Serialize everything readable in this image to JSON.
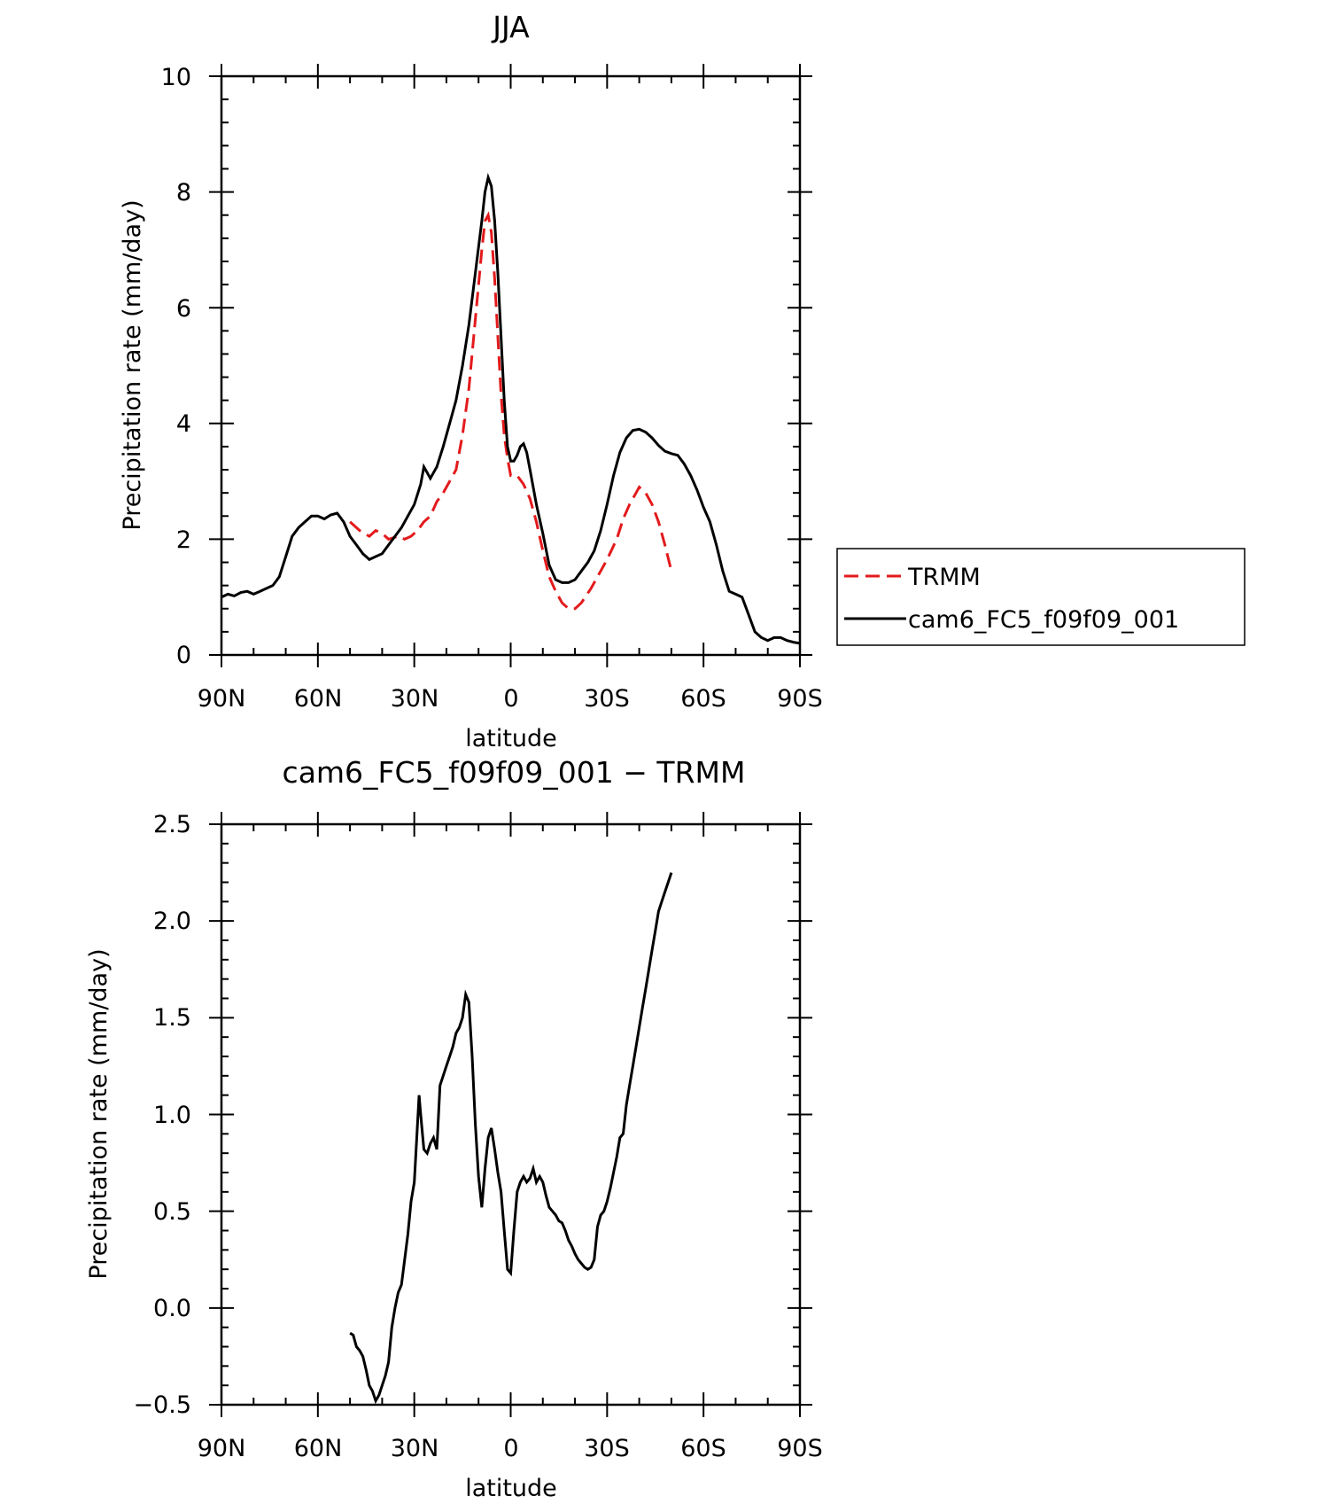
{
  "chart_data": [
    {
      "type": "line",
      "title": "JJA",
      "xlabel": "latitude",
      "ylabel": "Precipitation rate (mm/day)",
      "xlim": [
        -90,
        90
      ],
      "ylim": [
        0,
        10
      ],
      "x_ticks": [
        {
          "value": -90,
          "label": "90N"
        },
        {
          "value": -60,
          "label": "60N"
        },
        {
          "value": -30,
          "label": "30N"
        },
        {
          "value": 0,
          "label": "0"
        },
        {
          "value": 30,
          "label": "30S"
        },
        {
          "value": 60,
          "label": "60S"
        },
        {
          "value": 90,
          "label": "90S"
        }
      ],
      "y_ticks": [
        {
          "value": 0,
          "label": "0"
        },
        {
          "value": 2,
          "label": "2"
        },
        {
          "value": 4,
          "label": "4"
        },
        {
          "value": 6,
          "label": "6"
        },
        {
          "value": 8,
          "label": "8"
        },
        {
          "value": 10,
          "label": "10"
        }
      ],
      "legend": {
        "position": "right",
        "entries": [
          "TRMM",
          "cam6_FC5_f09f09_001"
        ]
      },
      "series": [
        {
          "name": "TRMM",
          "color": "#e31a1c",
          "style": "dashed",
          "x": [
            -50,
            -47,
            -44,
            -42,
            -40,
            -38,
            -35,
            -33,
            -31,
            -29,
            -27,
            -25,
            -23,
            -21,
            -19,
            -17,
            -15,
            -13,
            -11,
            -9,
            -8,
            -7,
            -6,
            -5,
            -4,
            -3,
            -2,
            -1,
            0,
            2,
            4,
            6,
            8,
            10,
            12,
            14,
            16,
            18,
            20,
            22,
            25,
            28,
            30,
            33,
            35,
            37,
            39,
            40,
            42,
            44,
            46,
            48,
            50
          ],
          "values": [
            2.3,
            2.15,
            2.05,
            2.15,
            2.1,
            2.0,
            2.05,
            2.0,
            2.05,
            2.15,
            2.3,
            2.4,
            2.65,
            2.8,
            3.0,
            3.2,
            3.8,
            4.6,
            5.8,
            7.0,
            7.5,
            7.6,
            7.3,
            6.5,
            5.5,
            4.5,
            3.8,
            3.4,
            3.1,
            3.1,
            2.95,
            2.7,
            2.3,
            1.8,
            1.35,
            1.1,
            0.9,
            0.8,
            0.8,
            0.9,
            1.15,
            1.45,
            1.65,
            2.0,
            2.35,
            2.6,
            2.8,
            2.9,
            2.8,
            2.6,
            2.3,
            1.9,
            1.45
          ]
        },
        {
          "name": "cam6_FC5_f09f09_001",
          "color": "#000000",
          "style": "solid",
          "x": [
            -90,
            -88,
            -86,
            -84,
            -82,
            -80,
            -78,
            -76,
            -74,
            -72,
            -70,
            -68,
            -66,
            -64,
            -62,
            -60,
            -58,
            -56,
            -54,
            -52,
            -50,
            -48,
            -46,
            -44,
            -42,
            -40,
            -38,
            -36,
            -34,
            -32,
            -30,
            -28,
            -27,
            -26,
            -25,
            -24,
            -23,
            -21,
            -19,
            -17,
            -15,
            -13,
            -11,
            -9,
            -8,
            -7,
            -6,
            -5,
            -4,
            -3,
            -2,
            -1,
            0,
            1,
            2,
            3,
            4,
            5,
            6,
            8,
            10,
            12,
            14,
            16,
            18,
            20,
            22,
            24,
            26,
            28,
            30,
            32,
            34,
            36,
            38,
            40,
            42,
            44,
            46,
            48,
            50,
            52,
            54,
            56,
            58,
            60,
            62,
            64,
            66,
            68,
            70,
            72,
            74,
            76,
            78,
            80,
            82,
            84,
            86,
            88,
            90
          ],
          "values": [
            1.0,
            1.05,
            1.02,
            1.08,
            1.1,
            1.05,
            1.1,
            1.15,
            1.2,
            1.35,
            1.7,
            2.05,
            2.2,
            2.3,
            2.4,
            2.4,
            2.35,
            2.42,
            2.45,
            2.3,
            2.05,
            1.9,
            1.75,
            1.65,
            1.7,
            1.75,
            1.9,
            2.05,
            2.2,
            2.4,
            2.6,
            2.95,
            3.25,
            3.15,
            3.05,
            3.15,
            3.25,
            3.6,
            4.0,
            4.4,
            5.0,
            5.7,
            6.6,
            7.5,
            8.0,
            8.25,
            8.1,
            7.5,
            6.6,
            5.5,
            4.4,
            3.6,
            3.35,
            3.35,
            3.45,
            3.6,
            3.65,
            3.5,
            3.2,
            2.6,
            2.1,
            1.55,
            1.3,
            1.25,
            1.25,
            1.3,
            1.45,
            1.6,
            1.8,
            2.15,
            2.6,
            3.1,
            3.5,
            3.75,
            3.88,
            3.9,
            3.85,
            3.75,
            3.62,
            3.52,
            3.48,
            3.45,
            3.3,
            3.1,
            2.85,
            2.55,
            2.3,
            1.9,
            1.45,
            1.1,
            1.05,
            1.0,
            0.7,
            0.4,
            0.3,
            0.25,
            0.3,
            0.3,
            0.25,
            0.22,
            0.2
          ]
        }
      ]
    },
    {
      "type": "line",
      "title": "cam6_FC5_f09f09_001 − TRMM",
      "xlabel": "latitude",
      "ylabel": "Precipitation rate (mm/day)",
      "xlim": [
        -90,
        90
      ],
      "ylim": [
        -0.5,
        2.5
      ],
      "x_ticks": [
        {
          "value": -90,
          "label": "90N"
        },
        {
          "value": -60,
          "label": "60N"
        },
        {
          "value": -30,
          "label": "30N"
        },
        {
          "value": 0,
          "label": "0"
        },
        {
          "value": 30,
          "label": "30S"
        },
        {
          "value": 60,
          "label": "60S"
        },
        {
          "value": 90,
          "label": "90S"
        }
      ],
      "y_ticks": [
        {
          "value": -0.5,
          "label": "−0.5"
        },
        {
          "value": 0.0,
          "label": "0.0"
        },
        {
          "value": 0.5,
          "label": "0.5"
        },
        {
          "value": 1.0,
          "label": "1.0"
        },
        {
          "value": 1.5,
          "label": "1.5"
        },
        {
          "value": 2.0,
          "label": "2.0"
        },
        {
          "value": 2.5,
          "label": "2.5"
        }
      ],
      "series": [
        {
          "name": "cam6_FC5_f09f09_001 − TRMM",
          "color": "#000000",
          "style": "solid",
          "x": [
            -50,
            -49,
            -48,
            -47,
            -46,
            -45,
            -44,
            -43,
            -42,
            -41,
            -40,
            -39,
            -38,
            -37,
            -36,
            -35,
            -34,
            -33,
            -32,
            -31,
            -30,
            -29,
            -28.5,
            -28,
            -27,
            -26,
            -25,
            -24,
            -23,
            -22,
            -21,
            -20,
            -19,
            -18,
            -17,
            -16,
            -15,
            -14,
            -13,
            -12,
            -11,
            -10,
            -9,
            -8,
            -7,
            -6,
            -5,
            -4,
            -3,
            -2,
            -1,
            0,
            1,
            2,
            3,
            4,
            5,
            6,
            7,
            8,
            9,
            10,
            11,
            12,
            13,
            14,
            15,
            16,
            17,
            18,
            19,
            20,
            21,
            22,
            23,
            24,
            25,
            26,
            27,
            28,
            29,
            30,
            31,
            32,
            33,
            34,
            35,
            36,
            37,
            38,
            39,
            40,
            41,
            42,
            43,
            44,
            45,
            46,
            47,
            48,
            49,
            50
          ],
          "values": [
            -0.13,
            -0.14,
            -0.2,
            -0.22,
            -0.25,
            -0.32,
            -0.4,
            -0.43,
            -0.48,
            -0.45,
            -0.4,
            -0.35,
            -0.28,
            -0.1,
            0.0,
            0.08,
            0.12,
            0.25,
            0.38,
            0.55,
            0.65,
            0.95,
            1.1,
            1.0,
            0.82,
            0.8,
            0.85,
            0.88,
            0.82,
            1.15,
            1.2,
            1.25,
            1.3,
            1.35,
            1.42,
            1.45,
            1.5,
            1.62,
            1.58,
            1.3,
            0.95,
            0.68,
            0.52,
            0.72,
            0.88,
            0.93,
            0.82,
            0.7,
            0.6,
            0.4,
            0.2,
            0.18,
            0.4,
            0.6,
            0.65,
            0.68,
            0.65,
            0.67,
            0.72,
            0.65,
            0.68,
            0.65,
            0.58,
            0.52,
            0.5,
            0.48,
            0.45,
            0.44,
            0.4,
            0.35,
            0.32,
            0.28,
            0.25,
            0.23,
            0.21,
            0.2,
            0.21,
            0.25,
            0.42,
            0.48,
            0.5,
            0.55,
            0.62,
            0.7,
            0.78,
            0.88,
            0.9,
            1.05,
            1.15,
            1.25,
            1.35,
            1.45,
            1.55,
            1.65,
            1.75,
            1.85,
            1.95,
            2.05,
            2.1,
            2.15,
            2.2,
            2.25
          ]
        }
      ]
    }
  ]
}
